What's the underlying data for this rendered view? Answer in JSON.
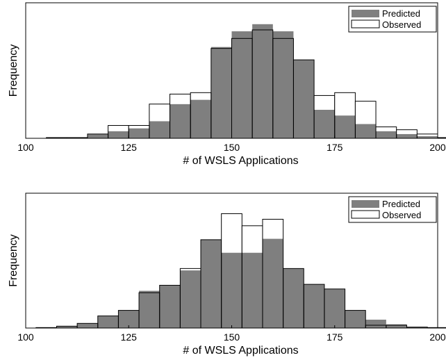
{
  "colors": {
    "predicted": "#7f7f7f",
    "observed": "#ffffff",
    "edge": "#000000"
  },
  "chart_data": [
    {
      "type": "histogram",
      "xlabel": "# of WSLS Applications",
      "ylabel": "Frequency",
      "xlim": [
        100,
        200
      ],
      "xticks": [
        "100",
        "125",
        "150",
        "175",
        "200"
      ],
      "bin_width": 5,
      "bin_start": 105,
      "legend": {
        "position": "top-right",
        "entries": [
          "Predicted",
          "Observed"
        ]
      },
      "series": [
        {
          "name": "Predicted",
          "values": [
            0.5,
            0.5,
            3,
            5,
            7,
            12,
            24,
            27,
            64,
            75,
            80,
            75,
            55,
            20,
            16,
            10,
            5,
            3,
            1.5,
            0.5
          ]
        },
        {
          "name": "Observed",
          "values": [
            0.5,
            0.5,
            3,
            9,
            9,
            24,
            31,
            32,
            63,
            70,
            76,
            70,
            55,
            30,
            32,
            26,
            8,
            6,
            3,
            0.5
          ]
        }
      ]
    },
    {
      "type": "histogram",
      "xlabel": "# of WSLS Applications",
      "ylabel": "Frequency",
      "xlim": [
        100,
        200
      ],
      "xticks": [
        "100",
        "125",
        "150",
        "175",
        "200"
      ],
      "bin_width": 5,
      "bin_start": 102.5,
      "legend": {
        "position": "top-right",
        "entries": [
          "Predicted",
          "Observed"
        ]
      },
      "series": [
        {
          "name": "Predicted",
          "values": [
            0.5,
            2,
            5,
            13,
            19,
            40,
            46,
            62,
            95,
            81,
            81,
            96,
            64,
            47,
            42,
            19,
            9,
            4,
            1,
            0.5
          ]
        },
        {
          "name": "Observed",
          "values": [
            0.5,
            2,
            5,
            13,
            19,
            38,
            46,
            64,
            95,
            123,
            110,
            117,
            64,
            47,
            42,
            19,
            3,
            3,
            1,
            0.5
          ]
        }
      ]
    }
  ]
}
